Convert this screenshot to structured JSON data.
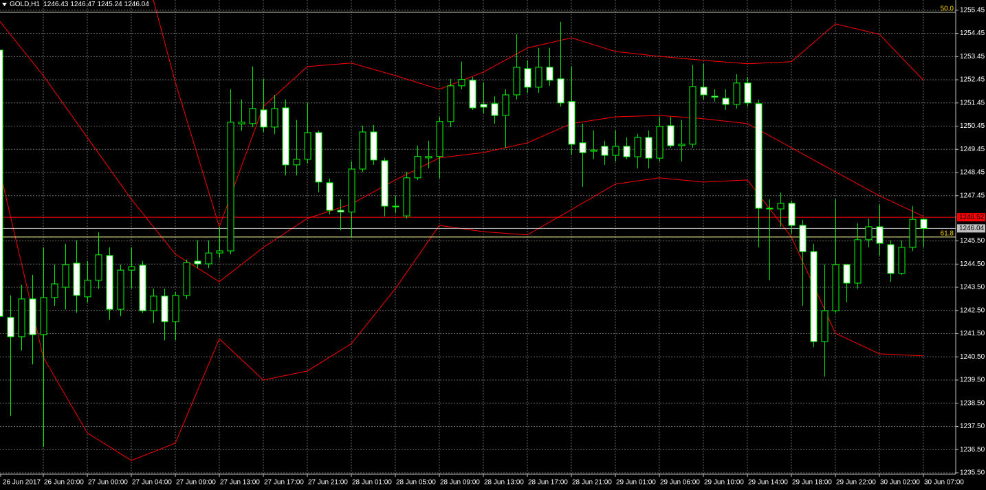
{
  "chart_data": {
    "type": "candlestick",
    "symbol": "GOLD,H1",
    "categories": [
      "26 Jun 2017",
      null,
      null,
      null,
      "26 Jun 20:00",
      null,
      null,
      null,
      "27 Jun 00:00",
      null,
      null,
      null,
      "27 Jun 04:00",
      null,
      null,
      null,
      "27 Jun 09:00",
      null,
      null,
      null,
      "27 Jun 13:00",
      null,
      null,
      null,
      "27 Jun 17:00",
      null,
      null,
      null,
      "27 Jun 21:00",
      null,
      null,
      null,
      "28 Jun 01:00",
      null,
      null,
      null,
      "28 Jun 05:00",
      null,
      null,
      null,
      "28 Jun 09:00",
      null,
      null,
      null,
      "28 Jun 13:00",
      null,
      null,
      null,
      "28 Jun 17:00",
      null,
      null,
      null,
      "28 Jun 21:00",
      null,
      null,
      null,
      "29 Jun 01:00",
      null,
      null,
      null,
      "29 Jun 06:00",
      null,
      null,
      null,
      "29 Jun 10:00",
      null,
      null,
      null,
      "29 Jun 14:00",
      null,
      null,
      null,
      "29 Jun 18:00",
      null,
      null,
      null,
      "29 Jun 22:00",
      null,
      null,
      null,
      "30 Jun 02:00",
      null,
      null,
      null,
      "30 Jun 07:00"
    ],
    "open": [
      1253.73,
      1242.2,
      1241.37,
      1243.0,
      1241.46,
      1243.06,
      1243.5,
      1244.54,
      1243.09,
      1243.8,
      1244.87,
      1242.55,
      1244.24,
      1244.45,
      1242.49,
      1243.12,
      1242.02,
      1243.15,
      1244.63,
      1244.51,
      1244.98,
      1245.07,
      1250.55,
      1250.56,
      1251.15,
      1250.41,
      1251.24,
      1248.78,
      1249.02,
      1250.17,
      1248.01,
      1246.82,
      1246.75,
      1248.6,
      1250.2,
      1248.96,
      1247.0,
      1246.58,
      1248.22,
      1249.08,
      1249.14,
      1250.65,
      1252.19,
      1252.43,
      1251.39,
      1251.42,
      1250.91,
      1251.8,
      1252.93,
      1252.13,
      1252.99,
      1252.49,
      1251.51,
      1249.73,
      1249.37,
      1249.58,
      1249.19,
      1249.58,
      1249.13,
      1249.96,
      1249.07,
      1250.47,
      1249.61,
      1249.67,
      1252.13,
      1251.74,
      1251.65,
      1251.39,
      1252.31,
      1251.42,
      1246.91,
      1246.88,
      1247.12,
      1246.17,
      1245.04,
      1241.16,
      1242.49,
      1244.48,
      1243.68,
      1245.55,
      1246.11,
      1245.34,
      1244.1,
      1245.22,
      1246.43
    ],
    "high": [
      1253.8,
      1243.15,
      1243.6,
      1244.04,
      1245.22,
      1244.48,
      1245.37,
      1245.52,
      1244.63,
      1245.87,
      1245.22,
      1244.48,
      1245.22,
      1244.63,
      1243.44,
      1243.44,
      1243.29,
      1244.69,
      1245.52,
      1245.52,
      1246.11,
      1252.04,
      1251.6,
      1253.02,
      1252.49,
      1251.8,
      1251.6,
      1250.71,
      1251.45,
      1250.26,
      1248.19,
      1247.3,
      1248.93,
      1250.47,
      1250.5,
      1249.08,
      1247.45,
      1248.48,
      1249.61,
      1249.82,
      1250.85,
      1252.49,
      1253.23,
      1252.57,
      1252.34,
      1251.74,
      1252.04,
      1254.41,
      1253.29,
      1253.82,
      1253.82,
      1254.95,
      1253.02,
      1250.56,
      1250.26,
      1249.82,
      1250.26,
      1249.97,
      1250.11,
      1250.26,
      1250.85,
      1250.85,
      1250.71,
      1253.08,
      1253.14,
      1252.04,
      1252.04,
      1252.69,
      1252.57,
      1251.6,
      1247.3,
      1247.59,
      1247.24,
      1246.41,
      1245.37,
      1244.48,
      1247.3,
      1244.48,
      1246.26,
      1246.47,
      1247.06,
      1245.52,
      1245.52,
      1247.0,
      1246.47
    ],
    "low": [
      1242.0,
      1237.96,
      1240.78,
      1240.18,
      1236.62,
      1242.7,
      1242.55,
      1242.41,
      1242.85,
      1243.44,
      1242.11,
      1242.26,
      1243.44,
      1242.41,
      1241.96,
      1241.22,
      1241.22,
      1243.0,
      1244.33,
      1244.33,
      1244.78,
      1244.93,
      1250.26,
      1250.41,
      1250.2,
      1250.11,
      1248.33,
      1248.33,
      1248.84,
      1247.59,
      1246.64,
      1245.96,
      1245.67,
      1248.48,
      1248.78,
      1246.56,
      1246.7,
      1246.47,
      1248.13,
      1248.63,
      1248.19,
      1250.41,
      1252.04,
      1251.15,
      1251.0,
      1250.56,
      1249.52,
      1251.6,
      1251.89,
      1251.89,
      1252.19,
      1251.3,
      1249.22,
      1247.83,
      1249.02,
      1248.78,
      1248.93,
      1249.02,
      1248.63,
      1248.63,
      1248.93,
      1249.52,
      1248.93,
      1249.52,
      1251.6,
      1251.51,
      1251.15,
      1251.21,
      1251.3,
      1245.22,
      1243.8,
      1246.11,
      1245.81,
      1242.7,
      1240.92,
      1239.65,
      1242.41,
      1242.85,
      1243.44,
      1245.22,
      1244.87,
      1243.74,
      1244.04,
      1245.07,
      1245.24
    ],
    "close": [
      1242.25,
      1241.37,
      1243.0,
      1241.46,
      1243.06,
      1243.65,
      1244.48,
      1243.15,
      1243.8,
      1244.9,
      1242.55,
      1244.24,
      1244.39,
      1242.49,
      1243.12,
      1242.02,
      1243.15,
      1244.57,
      1244.51,
      1244.98,
      1245.07,
      1250.62,
      1250.62,
      1251.21,
      1250.41,
      1251.21,
      1248.78,
      1249.02,
      1250.17,
      1248.04,
      1246.82,
      1246.75,
      1248.6,
      1250.2,
      1248.99,
      1247.0,
      1246.98,
      1248.22,
      1249.14,
      1249.14,
      1250.65,
      1252.19,
      1252.46,
      1251.24,
      1251.27,
      1250.91,
      1251.8,
      1252.99,
      1252.13,
      1252.99,
      1252.43,
      1251.45,
      1249.67,
      1249.31,
      1249.42,
      1249.19,
      1249.58,
      1249.13,
      1249.96,
      1249.07,
      1250.44,
      1249.61,
      1249.67,
      1252.16,
      1251.8,
      1251.7,
      1251.39,
      1252.31,
      1251.45,
      1246.91,
      1246.88,
      1247.12,
      1246.17,
      1245.04,
      1241.16,
      1242.49,
      1244.48,
      1243.68,
      1245.55,
      1246.11,
      1245.4,
      1244.1,
      1245.22,
      1246.43,
      1246.04
    ],
    "colors": {
      "up_body": "#000000",
      "down_body": "#ffffff",
      "wick": "#00ff00"
    },
    "ylim": [
      1235.44,
      1255.89
    ],
    "yticks": [
      1255.45,
      1254.45,
      1253.45,
      1252.45,
      1251.45,
      1250.45,
      1249.45,
      1248.45,
      1247.45,
      {
        "value": 1245.5,
        "label": "1245.50"
      },
      {
        "value": 1244.5,
        "label": "1244.50"
      },
      {
        "value": 1243.5,
        "label": "1243.50"
      },
      {
        "value": 1242.5,
        "label": "1242.50"
      },
      {
        "value": 1241.5,
        "label": "1241.50"
      },
      {
        "value": 1240.5,
        "label": "1240.50"
      },
      {
        "value": 1239.5,
        "label": "1239.50"
      },
      {
        "value": 1238.5,
        "label": "1238.50"
      },
      {
        "value": 1237.5,
        "label": "1237.50"
      },
      {
        "value": 1236.5,
        "label": "1236.50"
      },
      {
        "value": 1235.5,
        "label": "1235.50"
      }
    ],
    "grid": true,
    "overlay_x": [
      0,
      4,
      8,
      12,
      16,
      20,
      24,
      28,
      32,
      36,
      40,
      44,
      48,
      52,
      56,
      60,
      64,
      68,
      72,
      76,
      80,
      84
    ],
    "overlays": [
      {
        "color": "#ff0000",
        "values": [
          1271.1,
          1268.6,
          1264.8,
          1259.45,
          1252.34,
          1246.11,
          1251.3,
          1253.02,
          1253.17,
          1252.63,
          1252.04,
          1252.78,
          1253.82,
          1254.26,
          1253.67,
          1253.46,
          1253.29,
          1253.14,
          1253.23,
          1254.86,
          1254.41,
          1252.43
        ]
      },
      {
        "color": "#ff0000",
        "values": [
          1255.0,
          1252.63,
          1249.96,
          1247.3,
          1244.93,
          1243.74,
          1245.22,
          1246.47,
          1247.09,
          1248.13,
          1249.08,
          1249.31,
          1249.73,
          1250.56,
          1250.85,
          1250.91,
          1250.77,
          1250.56,
          1249.52,
          1248.48,
          1247.45,
          1246.56
        ]
      },
      {
        "color": "#ff0000",
        "values": [
          1248.63,
          1240.48,
          1237.22,
          1236.03,
          1236.78,
          1241.28,
          1239.5,
          1239.89,
          1241.07,
          1243.44,
          1246.17,
          1245.9,
          1245.76,
          1246.85,
          1247.95,
          1248.22,
          1248.04,
          1248.13,
          1245.67,
          1241.52,
          1240.63,
          1240.54
        ]
      }
    ],
    "levels": [
      {
        "value": 1255.36,
        "label": "50.0",
        "color": "#d8d8c0"
      },
      {
        "value": 1245.67,
        "label": "61.8",
        "color": "#ffff99"
      }
    ],
    "price_lines": [
      {
        "value": 1246.52,
        "color": "#ff0000"
      },
      {
        "value": 1246.04,
        "color": "#c0c0c0"
      }
    ]
  }
}
